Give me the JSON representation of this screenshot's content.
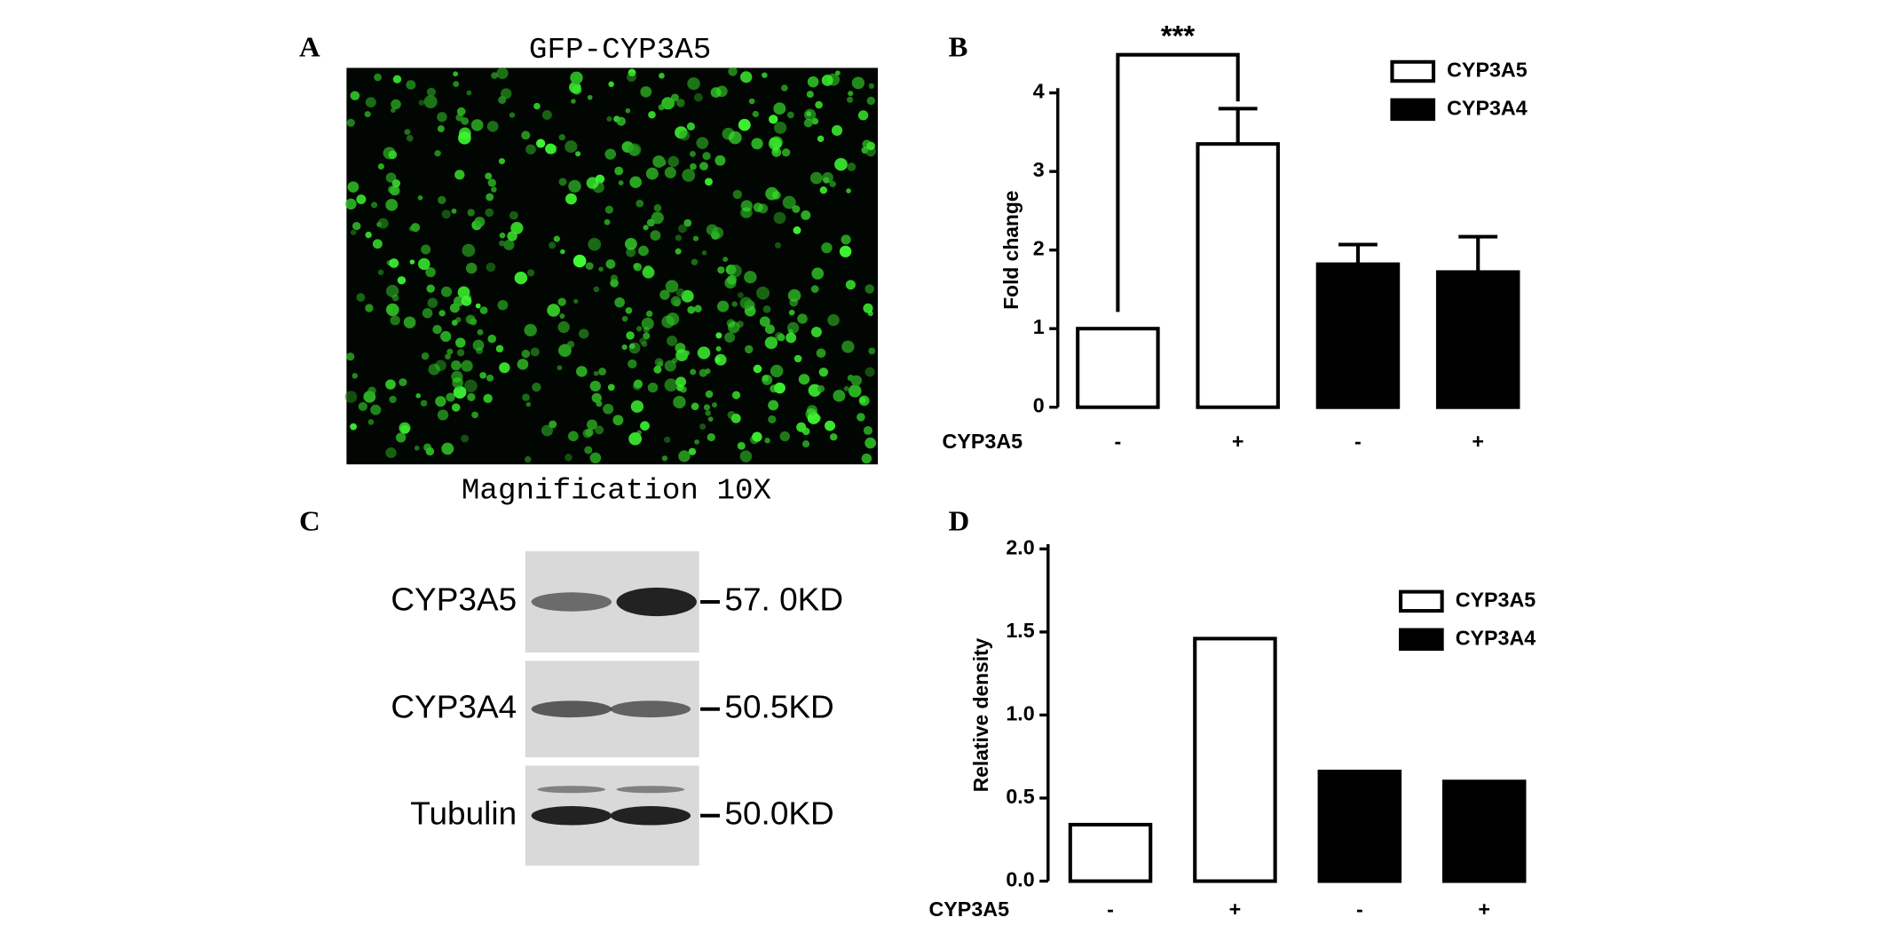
{
  "panels": {
    "a": {
      "label": "A",
      "title": "GFP-CYP3A5",
      "caption": "Magnification 10X"
    },
    "b": {
      "label": "B"
    },
    "c": {
      "label": "C",
      "rows": [
        {
          "name": "CYP3A5",
          "size": "57. 0KD"
        },
        {
          "name": "CYP3A4",
          "size": "50.5KD"
        },
        {
          "name": "Tubulin",
          "size": "50.0KD"
        }
      ]
    },
    "d": {
      "label": "D"
    }
  },
  "chart_data": [
    {
      "type": "bar",
      "ylabel": "Fold change",
      "row_label": "CYP3A5",
      "categories": [
        "-",
        "+",
        "-",
        "+"
      ],
      "series": [
        {
          "name": "CYP3A5",
          "color": "#ffffff",
          "values": [
            1,
            3.35,
            null,
            null
          ],
          "errors": [
            null,
            0.45,
            null,
            null
          ]
        },
        {
          "name": "CYP3A4",
          "color": "#000000",
          "values": [
            null,
            null,
            1.82,
            1.72
          ],
          "errors": [
            null,
            null,
            0.25,
            0.45
          ]
        }
      ],
      "annotation": "***",
      "ylim": [
        0,
        4
      ],
      "yticks": [
        0,
        1,
        2,
        3,
        4
      ],
      "legend": "upper right"
    },
    {
      "type": "bar",
      "ylabel": "Relative density",
      "row_label": "CYP3A5",
      "categories": [
        "-",
        "+",
        "-",
        "+"
      ],
      "series": [
        {
          "name": "CYP3A5",
          "color": "#ffffff",
          "values": [
            0.34,
            1.46,
            null,
            null
          ]
        },
        {
          "name": "CYP3A4",
          "color": "#000000",
          "values": [
            null,
            null,
            0.66,
            0.6
          ]
        }
      ],
      "ylim": [
        0,
        2
      ],
      "yticks": [
        {
          "value": 0,
          "label": "0.0"
        },
        {
          "value": 0.5,
          "label": "0.5"
        },
        {
          "value": 1,
          "label": "1.0"
        },
        {
          "value": 1.5,
          "label": "1.5"
        },
        {
          "value": 2,
          "label": "2.0"
        }
      ],
      "legend": "upper right"
    }
  ]
}
